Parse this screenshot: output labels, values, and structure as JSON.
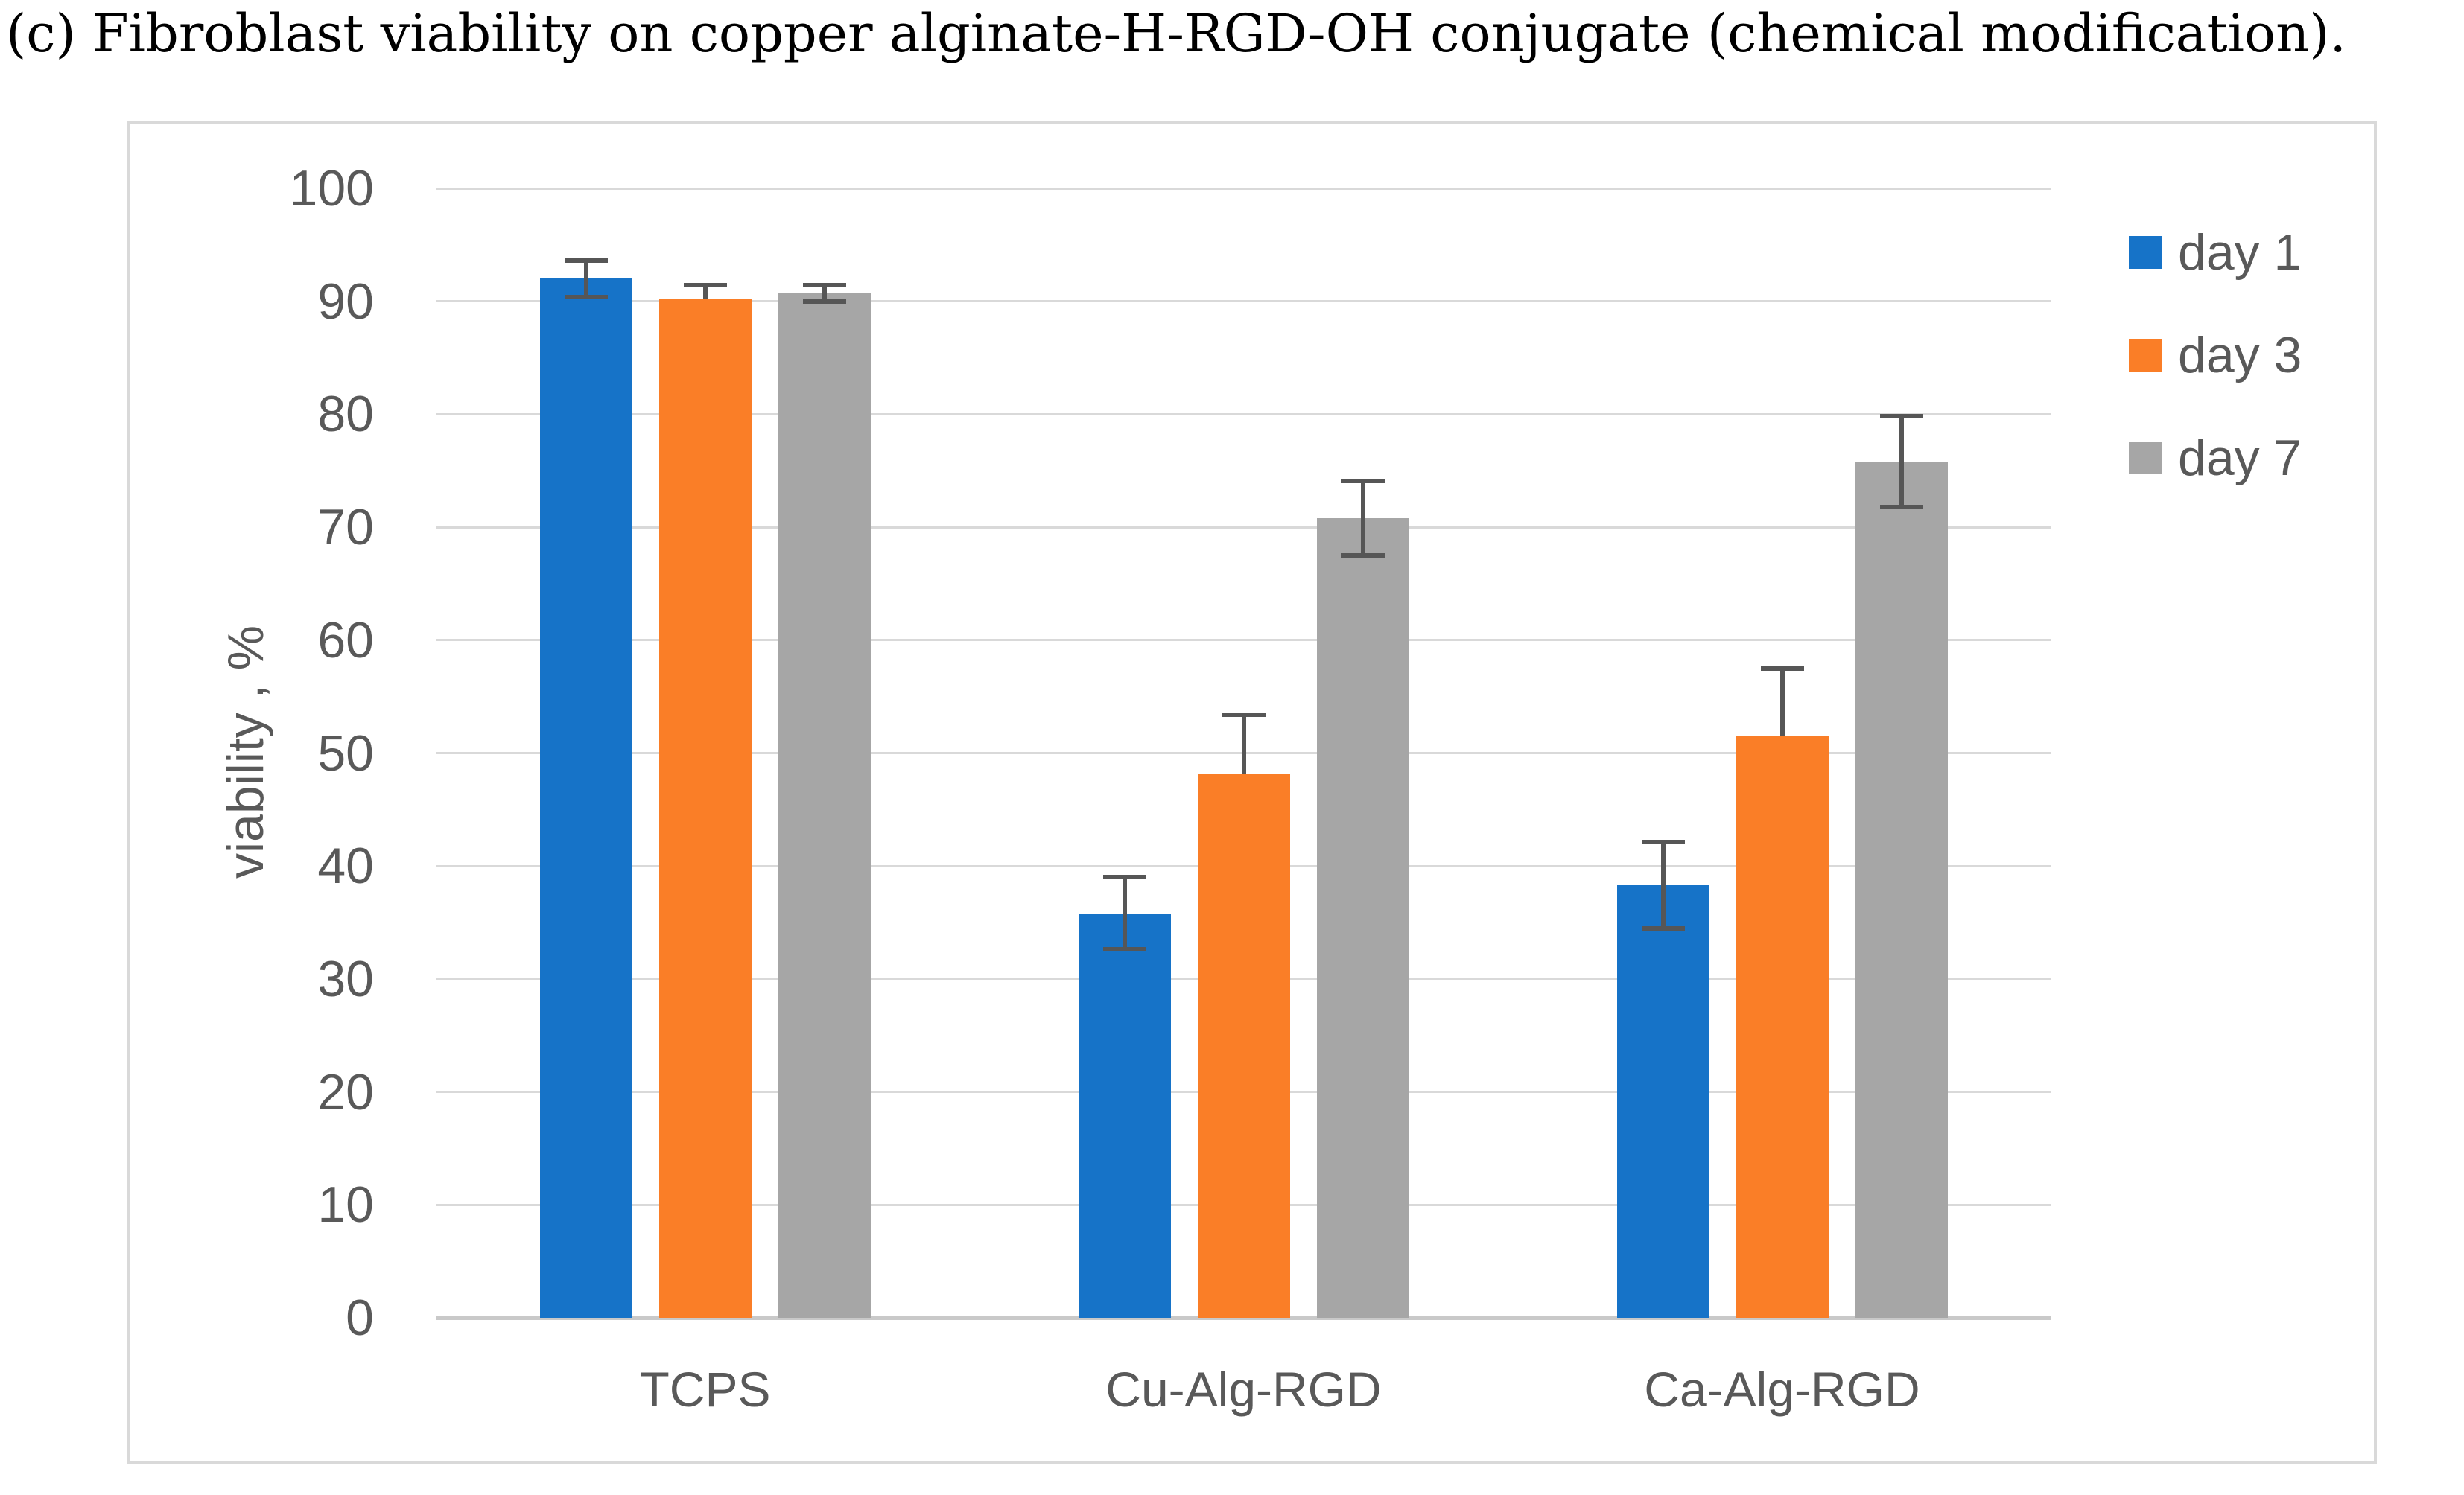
{
  "caption": "(c) Fibroblast viability on copper alginate-H-RGD-OH conjugate (chemical modification).",
  "chart_data": {
    "type": "bar",
    "title": "",
    "xlabel": "",
    "ylabel": "viability , %",
    "ylim": [
      0,
      100
    ],
    "yticks": [
      0,
      10,
      20,
      30,
      40,
      50,
      60,
      70,
      80,
      90,
      100
    ],
    "grid": true,
    "legend_position": "right",
    "categories": [
      "TCPS",
      "Cu-Alg-RGD",
      "Ca-Alg-RGD"
    ],
    "series": [
      {
        "name": "day 1",
        "color": "#1673c8",
        "values": [
          92.0,
          35.8,
          38.3
        ],
        "errors": [
          1.6,
          3.2,
          3.8
        ],
        "error_direction": "both"
      },
      {
        "name": "day 3",
        "color": "#fa7e27",
        "values": [
          90.2,
          48.1,
          51.5
        ],
        "errors": [
          1.2,
          5.3,
          6.0
        ],
        "error_direction": "plus"
      },
      {
        "name": "day 7",
        "color": "#a6a6a6",
        "values": [
          90.7,
          70.8,
          75.8
        ],
        "errors": [
          0.7,
          3.3,
          4.0
        ],
        "error_direction": "both"
      }
    ],
    "colors": {
      "error_bar": "#565656",
      "gridline": "#d9d9d9",
      "axis_line": "#c9c9c9",
      "axis_text": "#595959",
      "card_border": "#d9d9d9",
      "background": "#ffffff"
    }
  }
}
